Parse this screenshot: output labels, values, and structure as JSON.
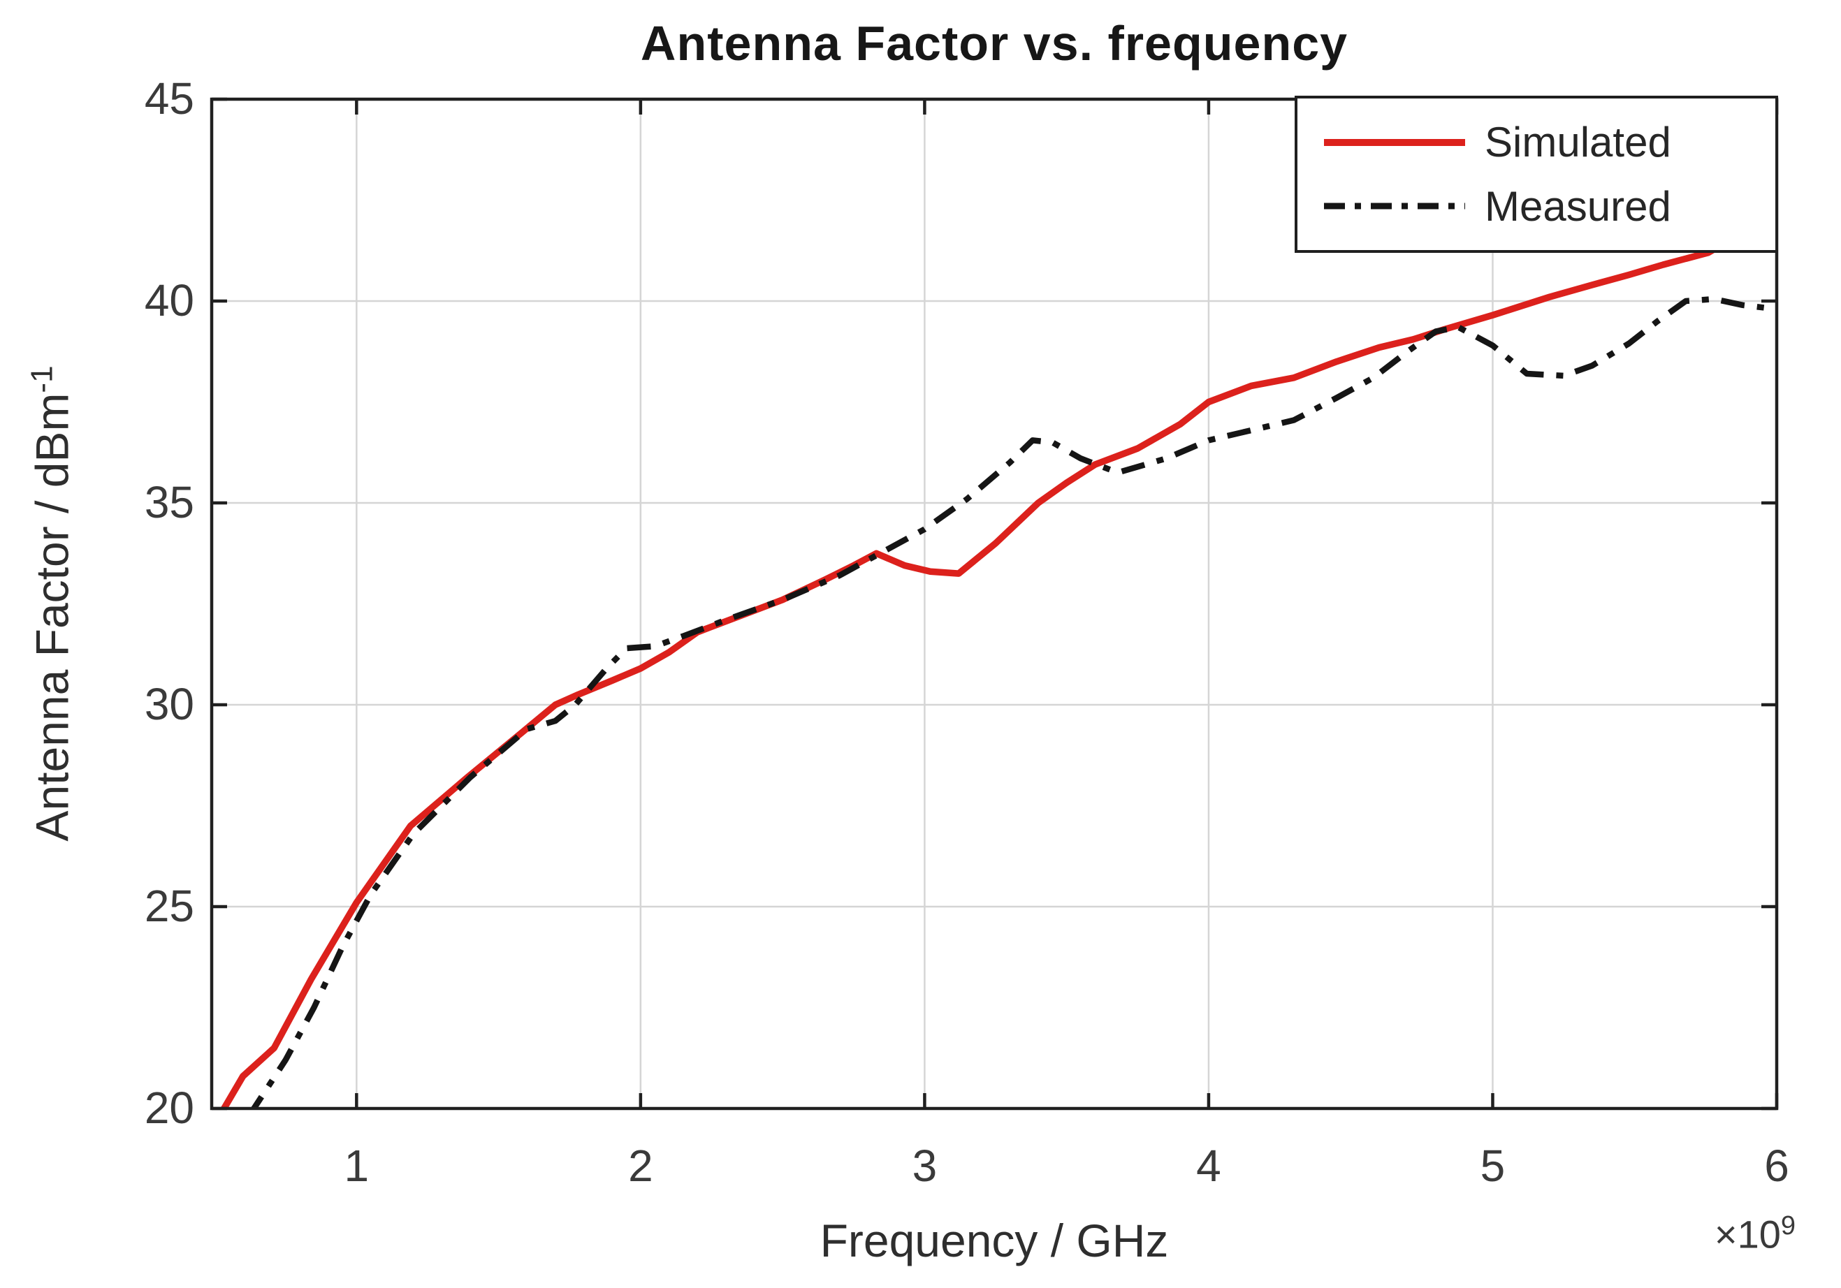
{
  "figure": {
    "background": "#ffffff",
    "text_color": "#3a3a3a",
    "grid_color": "#d5d5d5",
    "axis_color": "#202020"
  },
  "chart_data": {
    "type": "line",
    "title": "Antenna Factor vs. frequency",
    "xlabel": "Frequency / GHz",
    "ylabel": "Antenna Factor / dBm^-1",
    "ylabel_base": "Antenna Factor / dBm",
    "ylabel_exp": "-1",
    "x_multiplier": "×10^9",
    "x_multiplier_base": "×10",
    "x_multiplier_exp": "9",
    "xlim": [
      0.49,
      6
    ],
    "ylim": [
      20,
      45
    ],
    "xticks": [
      1,
      2,
      3,
      4,
      5,
      6
    ],
    "yticks": [
      20,
      25,
      30,
      35,
      40,
      45
    ],
    "grid": true,
    "legend_position": "top-right",
    "series": [
      {
        "name": "Simulated",
        "color": "#dc211c",
        "style": "solid",
        "x": [
          0.5,
          0.6,
          0.71,
          0.84,
          1.0,
          1.19,
          1.39,
          1.58,
          1.7,
          1.78,
          1.9,
          2.0,
          2.1,
          2.2,
          2.35,
          2.5,
          2.65,
          2.75,
          2.83,
          2.93,
          3.02,
          3.12,
          3.25,
          3.4,
          3.5,
          3.6,
          3.75,
          3.9,
          4.0,
          4.15,
          4.3,
          4.45,
          4.6,
          4.72,
          4.83,
          5.0,
          5.2,
          5.35,
          5.48,
          5.6,
          5.76,
          5.88,
          6.0
        ],
        "y": [
          19.6,
          20.8,
          21.5,
          23.2,
          25.1,
          27.0,
          28.2,
          29.3,
          30.0,
          30.25,
          30.6,
          30.9,
          31.3,
          31.8,
          32.2,
          32.6,
          33.1,
          33.45,
          33.75,
          33.45,
          33.3,
          33.25,
          34.0,
          35.0,
          35.5,
          35.95,
          36.35,
          36.95,
          37.5,
          37.9,
          38.1,
          38.5,
          38.85,
          39.05,
          39.3,
          39.65,
          40.1,
          40.4,
          40.65,
          40.9,
          41.2,
          41.7,
          42.2
        ]
      },
      {
        "name": "Measured",
        "color": "#151515",
        "style": "dash-dot",
        "x": [
          0.62,
          0.75,
          0.85,
          0.95,
          1.05,
          1.2,
          1.4,
          1.6,
          1.7,
          1.77,
          1.88,
          1.95,
          2.05,
          2.15,
          2.3,
          2.5,
          2.7,
          2.83,
          3.0,
          3.15,
          3.3,
          3.38,
          3.45,
          3.55,
          3.68,
          3.85,
          4.0,
          4.15,
          4.3,
          4.45,
          4.58,
          4.7,
          4.8,
          4.88,
          5.0,
          5.12,
          5.25,
          5.35,
          5.48,
          5.58,
          5.68,
          5.78,
          5.88,
          6.0
        ],
        "y": [
          19.8,
          21.2,
          22.5,
          24.0,
          25.3,
          26.8,
          28.2,
          29.4,
          29.6,
          30.0,
          30.9,
          31.4,
          31.45,
          31.7,
          32.1,
          32.6,
          33.2,
          33.7,
          34.35,
          35.1,
          36.0,
          36.55,
          36.5,
          36.1,
          35.75,
          36.1,
          36.55,
          36.8,
          37.05,
          37.6,
          38.1,
          38.75,
          39.25,
          39.35,
          38.9,
          38.2,
          38.15,
          38.4,
          38.95,
          39.5,
          40.0,
          40.05,
          39.9,
          39.8
        ]
      }
    ]
  },
  "legend": {
    "items": [
      {
        "label": "Simulated"
      },
      {
        "label": "Measured"
      }
    ]
  }
}
